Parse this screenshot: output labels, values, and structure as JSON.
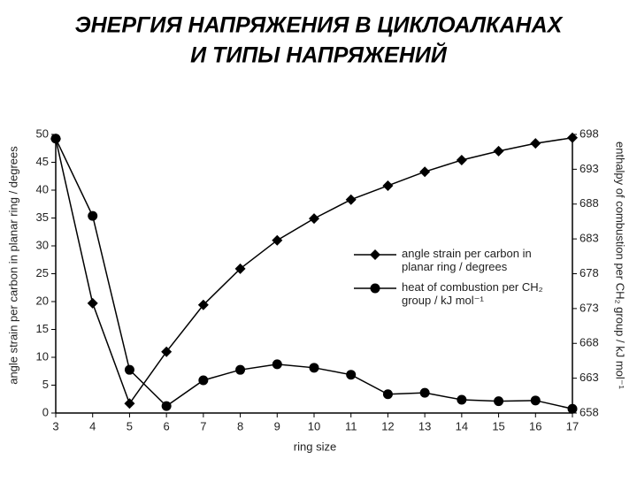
{
  "chart_data": {
    "type": "line",
    "title": [
      "ЭНЕРГИЯ НАПРЯЖЕНИЯ В ЦИКЛОАЛКАНАХ",
      "И ТИПЫ НАПРЯЖЕНИЙ"
    ],
    "x_label": "ring size",
    "y_label": "angle strain per carbon in planar ring / degrees",
    "y2_label": "enthalpy of combustion per CH₂ group / kJ mol⁻¹",
    "x": [
      3,
      4,
      5,
      6,
      7,
      8,
      9,
      10,
      11,
      12,
      13,
      14,
      15,
      16,
      17
    ],
    "xlim": [
      3,
      17
    ],
    "xticks": [
      3,
      4,
      5,
      6,
      7,
      8,
      9,
      10,
      11,
      12,
      13,
      14,
      15,
      16,
      17
    ],
    "ylim": [
      0,
      50
    ],
    "yticks": [
      0,
      5,
      10,
      15,
      20,
      25,
      30,
      35,
      40,
      45,
      50
    ],
    "y2lim": [
      658,
      698
    ],
    "y2ticks": [
      658,
      663,
      668,
      673,
      678,
      683,
      688,
      693,
      698
    ],
    "legend": "right",
    "series": [
      {
        "name": "angle strain per carbon in planar ring / degrees",
        "color": "#000000",
        "marker": "diamond",
        "values": [
          49.2,
          19.7,
          1.7,
          11,
          19.4,
          25.9,
          31,
          34.9,
          38.3,
          40.8,
          43.3,
          45.4,
          47,
          48.4,
          49.4
        ]
      },
      {
        "name": "heat of combustion per CH₂ group / kJ mol⁻¹",
        "color": "#000000",
        "marker": "circle",
        "axis": "y2",
        "values": [
          697.4,
          686.3,
          664.2,
          659,
          662.7,
          664.2,
          665,
          664.5,
          663.5,
          660.7,
          660.9,
          659.9,
          659.7,
          659.8,
          658.6
        ]
      }
    ]
  }
}
